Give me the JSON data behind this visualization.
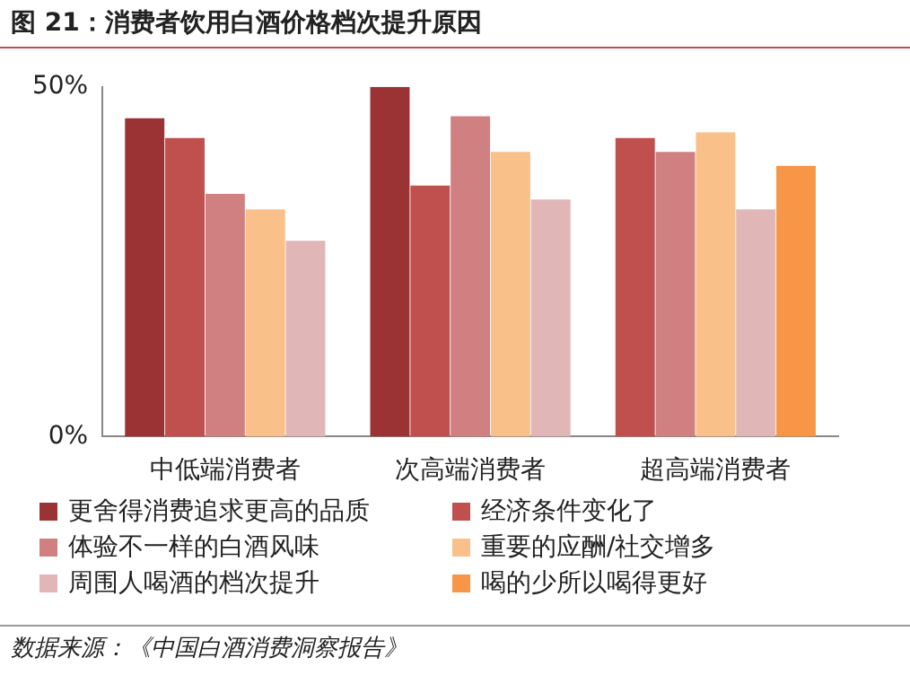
{
  "chart_data": {
    "type": "bar",
    "title": "图 21：消费者饮用白酒价格档次提升原因",
    "categories": [
      "中低端消费者",
      "次高端消费者",
      "超高端消费者"
    ],
    "series": [
      {
        "name": "更舍得消费追求更高的品质",
        "color": "#9b3335",
        "values": [
          45.5,
          50,
          null
        ]
      },
      {
        "name": "经济条件变化了",
        "color": "#c0504d",
        "values": [
          42.7,
          35.9,
          42.7
        ]
      },
      {
        "name": "体验不一样的白酒风味",
        "color": "#d08080",
        "values": [
          34.7,
          45.8,
          40.7
        ]
      },
      {
        "name": "重要的应酬/社交增多",
        "color": "#f9c08a",
        "values": [
          32.5,
          40.7,
          43.5
        ]
      },
      {
        "name": "周围人喝酒的档次提升",
        "color": "#e0b6b6",
        "values": [
          28,
          33.9,
          32.5
        ]
      },
      {
        "name": "喝的少所以喝得更好",
        "color": "#f79646",
        "values": [
          null,
          null,
          38.7
        ]
      }
    ],
    "ylim": [
      0,
      50
    ],
    "yticks": [
      {
        "value": 0,
        "label": "0%"
      },
      {
        "value": 50,
        "label": "50%"
      }
    ],
    "grid": false,
    "legend": "bottom",
    "annotations": [
      "数据来源：《中国白酒消费洞察报告》"
    ]
  }
}
